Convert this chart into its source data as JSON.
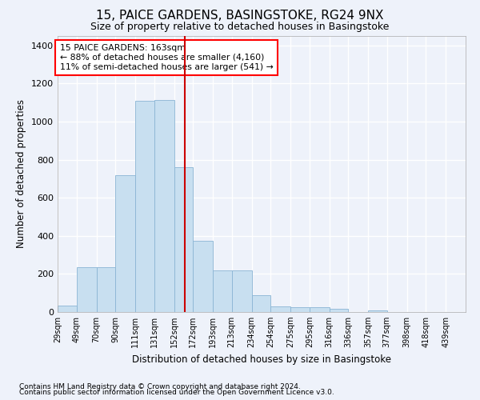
{
  "title": "15, PAICE GARDENS, BASINGSTOKE, RG24 9NX",
  "subtitle": "Size of property relative to detached houses in Basingstoke",
  "xlabel": "Distribution of detached houses by size in Basingstoke",
  "ylabel": "Number of detached properties",
  "footnote1": "Contains HM Land Registry data © Crown copyright and database right 2024.",
  "footnote2": "Contains public sector information licensed under the Open Government Licence v3.0.",
  "annotation_line1": "15 PAICE GARDENS: 163sqm",
  "annotation_line2": "← 88% of detached houses are smaller (4,160)",
  "annotation_line3": "11% of semi-detached houses are larger (541) →",
  "property_size": 163,
  "bar_color": "#c8dff0",
  "bar_edge_color": "#8ab4d4",
  "vline_color": "#cc0000",
  "background_color": "#eef2fa",
  "grid_color": "#ffffff",
  "bins": [
    29,
    49,
    70,
    90,
    111,
    131,
    152,
    172,
    193,
    213,
    234,
    254,
    275,
    295,
    316,
    336,
    357,
    377,
    398,
    418,
    439
  ],
  "counts": [
    35,
    235,
    235,
    720,
    1110,
    1115,
    760,
    375,
    220,
    220,
    90,
    30,
    25,
    25,
    15,
    0,
    10,
    0,
    0,
    0,
    0
  ],
  "ylim": [
    0,
    1450
  ],
  "yticks": [
    0,
    200,
    400,
    600,
    800,
    1000,
    1200,
    1400
  ],
  "figsize": [
    6.0,
    5.0
  ],
  "dpi": 100
}
